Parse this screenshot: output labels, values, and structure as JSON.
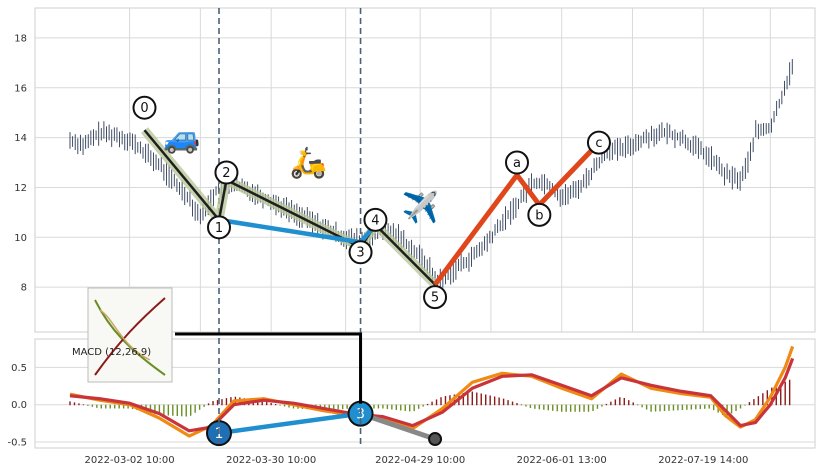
{
  "chart_data": {
    "type": "line",
    "title": "",
    "price_panel": {
      "ylim": [
        6.2,
        19.2
      ],
      "yticks": [
        8,
        10,
        12,
        14,
        16,
        18
      ],
      "x_index_range": [
        0,
        100
      ],
      "price_series": [
        {
          "i": 0,
          "v": 13.9
        },
        {
          "i": 2,
          "v": 13.7
        },
        {
          "i": 4,
          "v": 14.2
        },
        {
          "i": 6,
          "v": 14.1
        },
        {
          "i": 8,
          "v": 13.9
        },
        {
          "i": 10,
          "v": 13.4
        },
        {
          "i": 12,
          "v": 12.9
        },
        {
          "i": 14,
          "v": 12.2
        },
        {
          "i": 16,
          "v": 11.6
        },
        {
          "i": 17,
          "v": 11.0
        },
        {
          "i": 18,
          "v": 10.9
        },
        {
          "i": 19,
          "v": 11.6
        },
        {
          "i": 20,
          "v": 12.0
        },
        {
          "i": 22,
          "v": 12.1
        },
        {
          "i": 24,
          "v": 11.9
        },
        {
          "i": 26,
          "v": 11.6
        },
        {
          "i": 28,
          "v": 11.3
        },
        {
          "i": 30,
          "v": 11.0
        },
        {
          "i": 32,
          "v": 10.7
        },
        {
          "i": 34,
          "v": 10.4
        },
        {
          "i": 36,
          "v": 10.1
        },
        {
          "i": 38,
          "v": 9.9
        },
        {
          "i": 40,
          "v": 9.9
        },
        {
          "i": 42,
          "v": 10.3
        },
        {
          "i": 44,
          "v": 10.1
        },
        {
          "i": 46,
          "v": 9.5
        },
        {
          "i": 48,
          "v": 8.9
        },
        {
          "i": 49,
          "v": 8.3
        },
        {
          "i": 50,
          "v": 8.3
        },
        {
          "i": 52,
          "v": 8.8
        },
        {
          "i": 54,
          "v": 9.2
        },
        {
          "i": 56,
          "v": 9.8
        },
        {
          "i": 58,
          "v": 10.6
        },
        {
          "i": 60,
          "v": 11.3
        },
        {
          "i": 62,
          "v": 12.2
        },
        {
          "i": 64,
          "v": 12.2
        },
        {
          "i": 66,
          "v": 11.6
        },
        {
          "i": 68,
          "v": 11.9
        },
        {
          "i": 70,
          "v": 12.6
        },
        {
          "i": 72,
          "v": 13.5
        },
        {
          "i": 74,
          "v": 13.5
        },
        {
          "i": 76,
          "v": 13.8
        },
        {
          "i": 78,
          "v": 14.1
        },
        {
          "i": 80,
          "v": 14.2
        },
        {
          "i": 82,
          "v": 14.0
        },
        {
          "i": 84,
          "v": 13.6
        },
        {
          "i": 86,
          "v": 13.2
        },
        {
          "i": 88,
          "v": 12.5
        },
        {
          "i": 89,
          "v": 12.4
        },
        {
          "i": 90,
          "v": 12.3
        },
        {
          "i": 91,
          "v": 13.0
        },
        {
          "i": 92,
          "v": 14.2
        },
        {
          "i": 94,
          "v": 14.4
        },
        {
          "i": 95,
          "v": 15.2
        },
        {
          "i": 96,
          "v": 16.1
        },
        {
          "i": 97,
          "v": 16.9
        }
      ],
      "vlines_index": [
        20,
        39
      ],
      "waves": [
        {
          "from_label": "0",
          "to_label": "1",
          "color": "#1f1f1f",
          "segments": [
            [
              10,
              14.3
            ],
            [
              20,
              10.7
            ],
            [
              21,
              12.3
            ],
            [
              39,
              9.6
            ],
            [
              41,
              10.5
            ],
            [
              49,
              8.1
            ]
          ]
        },
        {
          "from_label": "a",
          "to_label": "c",
          "color": "#e0461b",
          "segments": [
            [
              49,
              8.1
            ],
            [
              60,
              12.5
            ],
            [
              63,
              11.3
            ],
            [
              71,
              13.8
            ]
          ]
        },
        {
          "from_label": "1",
          "to_label": "3",
          "color": "#1f8fd0",
          "segments": [
            [
              20,
              10.7
            ],
            [
              39,
              9.8
            ],
            [
              41,
              10.5
            ]
          ]
        }
      ],
      "wave_points": [
        {
          "label": "0",
          "i": 10,
          "v": 15.2
        },
        {
          "label": "1",
          "i": 20,
          "v": 10.4
        },
        {
          "label": "2",
          "i": 21,
          "v": 12.6
        },
        {
          "label": "3",
          "i": 39,
          "v": 9.4
        },
        {
          "label": "4",
          "i": 41,
          "v": 10.7
        },
        {
          "label": "5",
          "i": 49,
          "v": 7.6
        },
        {
          "label": "a",
          "i": 60,
          "v": 13.0
        },
        {
          "label": "b",
          "i": 63,
          "v": 10.9
        },
        {
          "label": "c",
          "i": 71,
          "v": 13.8
        }
      ]
    },
    "macd_panel": {
      "label": "MACD (12,26,9)",
      "ylim": [
        -0.58,
        0.88
      ],
      "yticks": [
        -0.5,
        0.0,
        0.5
      ],
      "macd": [
        {
          "i": 0,
          "v": 0.14
        },
        {
          "i": 4,
          "v": 0.06
        },
        {
          "i": 8,
          "v": 0.0
        },
        {
          "i": 12,
          "v": -0.18
        },
        {
          "i": 16,
          "v": -0.42
        },
        {
          "i": 19,
          "v": -0.28
        },
        {
          "i": 22,
          "v": 0.05
        },
        {
          "i": 26,
          "v": 0.08
        },
        {
          "i": 30,
          "v": 0.0
        },
        {
          "i": 34,
          "v": -0.08
        },
        {
          "i": 38,
          "v": -0.14
        },
        {
          "i": 42,
          "v": -0.18
        },
        {
          "i": 46,
          "v": -0.32
        },
        {
          "i": 50,
          "v": -0.05
        },
        {
          "i": 54,
          "v": 0.3
        },
        {
          "i": 58,
          "v": 0.42
        },
        {
          "i": 62,
          "v": 0.38
        },
        {
          "i": 66,
          "v": 0.22
        },
        {
          "i": 70,
          "v": 0.08
        },
        {
          "i": 74,
          "v": 0.41
        },
        {
          "i": 78,
          "v": 0.22
        },
        {
          "i": 82,
          "v": 0.15
        },
        {
          "i": 86,
          "v": 0.1
        },
        {
          "i": 88,
          "v": -0.15
        },
        {
          "i": 90,
          "v": -0.3
        },
        {
          "i": 92,
          "v": -0.2
        },
        {
          "i": 94,
          "v": 0.1
        },
        {
          "i": 96,
          "v": 0.5
        },
        {
          "i": 97,
          "v": 0.78
        }
      ],
      "signal": [
        {
          "i": 0,
          "v": 0.12
        },
        {
          "i": 4,
          "v": 0.08
        },
        {
          "i": 8,
          "v": 0.02
        },
        {
          "i": 12,
          "v": -0.12
        },
        {
          "i": 16,
          "v": -0.35
        },
        {
          "i": 19,
          "v": -0.3
        },
        {
          "i": 22,
          "v": 0.0
        },
        {
          "i": 26,
          "v": 0.06
        },
        {
          "i": 30,
          "v": 0.02
        },
        {
          "i": 34,
          "v": -0.05
        },
        {
          "i": 38,
          "v": -0.12
        },
        {
          "i": 42,
          "v": -0.16
        },
        {
          "i": 46,
          "v": -0.28
        },
        {
          "i": 50,
          "v": -0.1
        },
        {
          "i": 54,
          "v": 0.22
        },
        {
          "i": 58,
          "v": 0.38
        },
        {
          "i": 62,
          "v": 0.4
        },
        {
          "i": 66,
          "v": 0.26
        },
        {
          "i": 70,
          "v": 0.12
        },
        {
          "i": 74,
          "v": 0.36
        },
        {
          "i": 78,
          "v": 0.26
        },
        {
          "i": 82,
          "v": 0.18
        },
        {
          "i": 86,
          "v": 0.12
        },
        {
          "i": 88,
          "v": -0.08
        },
        {
          "i": 90,
          "v": -0.28
        },
        {
          "i": 92,
          "v": -0.24
        },
        {
          "i": 94,
          "v": 0.0
        },
        {
          "i": 96,
          "v": 0.36
        },
        {
          "i": 97,
          "v": 0.62
        }
      ],
      "hist_range_index": [
        0,
        97
      ],
      "markers": [
        {
          "label": "1",
          "i": 20,
          "v": -0.38,
          "fill": "#1f6fb5"
        },
        {
          "label": "3",
          "i": 39,
          "v": -0.12,
          "fill": "#1f8fd0"
        },
        {
          "label": "",
          "i": 49,
          "v": -0.46,
          "fill": "#555555"
        }
      ]
    },
    "xticks": [
      {
        "i": 8,
        "label": "2022-03-02 10:00"
      },
      {
        "i": 27,
        "label": "2022-03-30 10:00"
      },
      {
        "i": 47,
        "label": "2022-04-29 10:00"
      },
      {
        "i": 66,
        "label": "2022-06-01 13:00"
      },
      {
        "i": 85,
        "label": "2022-07-19 14:00"
      }
    ],
    "emojis": [
      {
        "name": "car",
        "glyph": "🚙",
        "i": 15,
        "v": 13.6
      },
      {
        "name": "scooter",
        "glyph": "🛵",
        "i": 32,
        "v": 12.6
      },
      {
        "name": "airplane",
        "glyph": "✈️",
        "i": 47,
        "v": 10.8
      }
    ],
    "colors": {
      "grid": "#d9d9d9",
      "candles": "#2b3a55",
      "wave_dark": "#1f1f1f",
      "wave_shadow": "#b9c79a",
      "abc": "#e0461b",
      "link13": "#1f8fd0",
      "macd": "#f08a12",
      "signal": "#c9343a",
      "hist_up": "#8b1a1a",
      "hist_down": "#6b8e23",
      "vline": "#4a6078"
    }
  }
}
